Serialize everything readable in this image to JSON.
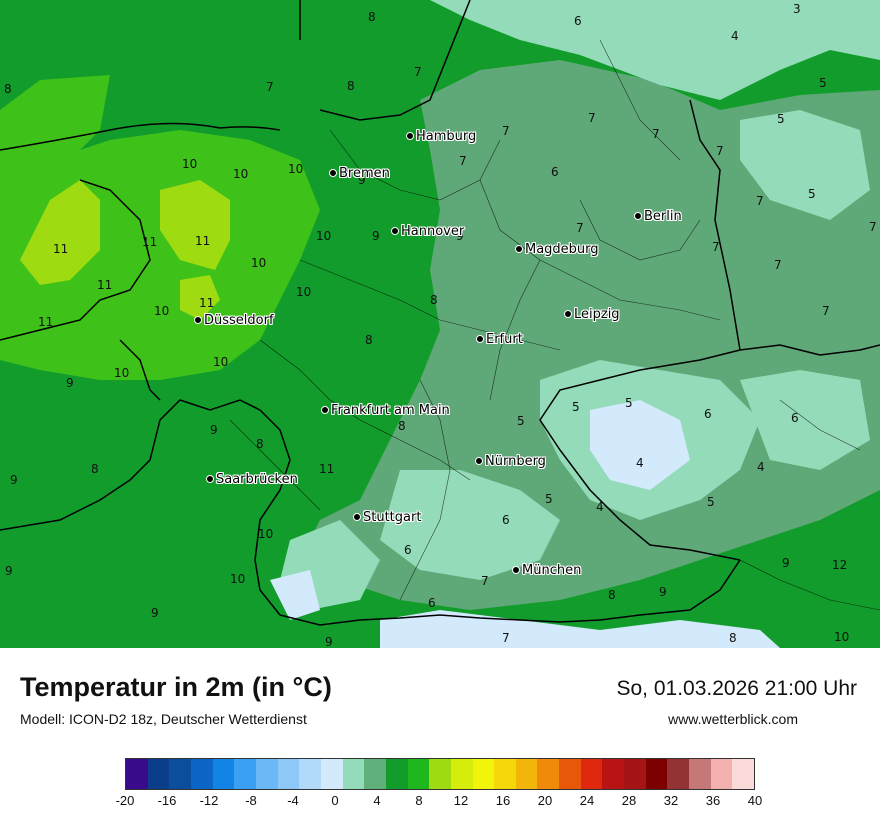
{
  "map": {
    "cities": [
      {
        "name": "Hamburg",
        "pos": [
          410,
          140
        ]
      },
      {
        "name": "Bremen",
        "pos": [
          333,
          177
        ]
      },
      {
        "name": "Berlin",
        "pos": [
          638,
          220
        ]
      },
      {
        "name": "Hannover",
        "pos": [
          395,
          235
        ]
      },
      {
        "name": "Magdeburg",
        "pos": [
          519,
          253
        ]
      },
      {
        "name": "Leipzig",
        "pos": [
          568,
          318
        ]
      },
      {
        "name": "Düsseldorf",
        "pos": [
          198,
          324
        ]
      },
      {
        "name": "Erfurt",
        "pos": [
          480,
          343
        ]
      },
      {
        "name": "Frankfurt am Main",
        "pos": [
          325,
          414
        ]
      },
      {
        "name": "Nürnberg",
        "pos": [
          479,
          465
        ]
      },
      {
        "name": "Saarbrücken",
        "pos": [
          210,
          483
        ]
      },
      {
        "name": "Stuttgart",
        "pos": [
          357,
          521
        ]
      },
      {
        "name": "München",
        "pos": [
          516,
          574
        ]
      }
    ],
    "values": [
      {
        "v": "8",
        "pos": [
          372,
          18
        ]
      },
      {
        "v": "6",
        "pos": [
          578,
          22
        ]
      },
      {
        "v": "3",
        "pos": [
          797,
          10
        ]
      },
      {
        "v": "4",
        "pos": [
          735,
          37
        ]
      },
      {
        "v": "8",
        "pos": [
          8,
          90
        ]
      },
      {
        "v": "7",
        "pos": [
          270,
          88
        ]
      },
      {
        "v": "8",
        "pos": [
          351,
          87
        ]
      },
      {
        "v": "7",
        "pos": [
          418,
          73
        ]
      },
      {
        "v": "5",
        "pos": [
          823,
          84
        ]
      },
      {
        "v": "7",
        "pos": [
          506,
          132
        ]
      },
      {
        "v": "7",
        "pos": [
          592,
          119
        ]
      },
      {
        "v": "7",
        "pos": [
          656,
          135
        ]
      },
      {
        "v": "5",
        "pos": [
          781,
          120
        ]
      },
      {
        "v": "10",
        "pos": [
          186,
          165
        ]
      },
      {
        "v": "10",
        "pos": [
          237,
          175
        ]
      },
      {
        "v": "10",
        "pos": [
          292,
          170
        ]
      },
      {
        "v": "9",
        "pos": [
          362,
          181
        ]
      },
      {
        "v": "7",
        "pos": [
          463,
          162
        ]
      },
      {
        "v": "6",
        "pos": [
          555,
          173
        ]
      },
      {
        "v": "7",
        "pos": [
          720,
          152
        ]
      },
      {
        "v": "7",
        "pos": [
          760,
          202
        ]
      },
      {
        "v": "5",
        "pos": [
          812,
          195
        ]
      },
      {
        "v": "7",
        "pos": [
          873,
          228
        ]
      },
      {
        "v": "11",
        "pos": [
          57,
          250
        ]
      },
      {
        "v": "11",
        "pos": [
          146,
          243
        ]
      },
      {
        "v": "11",
        "pos": [
          199,
          242
        ]
      },
      {
        "v": "10",
        "pos": [
          255,
          264
        ]
      },
      {
        "v": "10",
        "pos": [
          320,
          237
        ]
      },
      {
        "v": "9",
        "pos": [
          376,
          237
        ]
      },
      {
        "v": "9",
        "pos": [
          460,
          237
        ]
      },
      {
        "v": "7",
        "pos": [
          580,
          229
        ]
      },
      {
        "v": "7",
        "pos": [
          716,
          248
        ]
      },
      {
        "v": "7",
        "pos": [
          778,
          266
        ]
      },
      {
        "v": "11",
        "pos": [
          101,
          286
        ]
      },
      {
        "v": "10",
        "pos": [
          300,
          293
        ]
      },
      {
        "v": "8",
        "pos": [
          434,
          301
        ]
      },
      {
        "v": "11",
        "pos": [
          203,
          304
        ]
      },
      {
        "v": "10",
        "pos": [
          158,
          312
        ]
      },
      {
        "v": "11",
        "pos": [
          42,
          323
        ]
      },
      {
        "v": "7",
        "pos": [
          826,
          312
        ]
      },
      {
        "v": "8",
        "pos": [
          369,
          341
        ]
      },
      {
        "v": "10",
        "pos": [
          217,
          363
        ]
      },
      {
        "v": "10",
        "pos": [
          118,
          374
        ]
      },
      {
        "v": "9",
        "pos": [
          70,
          384
        ]
      },
      {
        "v": "5",
        "pos": [
          576,
          408
        ]
      },
      {
        "v": "5",
        "pos": [
          629,
          404
        ]
      },
      {
        "v": "6",
        "pos": [
          708,
          415
        ]
      },
      {
        "v": "6",
        "pos": [
          795,
          419
        ]
      },
      {
        "v": "5",
        "pos": [
          521,
          422
        ]
      },
      {
        "v": "8",
        "pos": [
          402,
          427
        ]
      },
      {
        "v": "9",
        "pos": [
          214,
          431
        ]
      },
      {
        "v": "8",
        "pos": [
          260,
          445
        ]
      },
      {
        "v": "11",
        "pos": [
          323,
          470
        ]
      },
      {
        "v": "4",
        "pos": [
          640,
          464
        ]
      },
      {
        "v": "4",
        "pos": [
          761,
          468
        ]
      },
      {
        "v": "8",
        "pos": [
          95,
          470
        ]
      },
      {
        "v": "9",
        "pos": [
          14,
          481
        ]
      },
      {
        "v": "5",
        "pos": [
          549,
          500
        ]
      },
      {
        "v": "4",
        "pos": [
          600,
          508
        ]
      },
      {
        "v": "5",
        "pos": [
          711,
          503
        ]
      },
      {
        "v": "6",
        "pos": [
          506,
          521
        ]
      },
      {
        "v": "10",
        "pos": [
          262,
          535
        ]
      },
      {
        "v": "6",
        "pos": [
          408,
          551
        ]
      },
      {
        "v": "9",
        "pos": [
          786,
          564
        ]
      },
      {
        "v": "12",
        "pos": [
          836,
          566
        ]
      },
      {
        "v": "9",
        "pos": [
          9,
          572
        ]
      },
      {
        "v": "10",
        "pos": [
          234,
          580
        ]
      },
      {
        "v": "7",
        "pos": [
          485,
          582
        ]
      },
      {
        "v": "8",
        "pos": [
          612,
          596
        ]
      },
      {
        "v": "9",
        "pos": [
          663,
          593
        ]
      },
      {
        "v": "6",
        "pos": [
          432,
          604
        ]
      },
      {
        "v": "9",
        "pos": [
          155,
          614
        ]
      },
      {
        "v": "7",
        "pos": [
          506,
          639
        ]
      },
      {
        "v": "8",
        "pos": [
          733,
          639
        ]
      },
      {
        "v": "9",
        "pos": [
          329,
          643
        ]
      },
      {
        "v": "10",
        "pos": [
          838,
          638
        ]
      }
    ]
  },
  "footer": {
    "title": "Temperatur in 2m (in °C)",
    "subtitle": "Modell: ICON-D2 18z, Deutscher Wetterdienst",
    "datetime": "So, 01.03.2026 21:00 Uhr",
    "website": "www.wetterblick.com"
  },
  "legend": {
    "colors": [
      "#3a0a8c",
      "#0a3e8a",
      "#0b4f9c",
      "#0d66c6",
      "#1184e6",
      "#3aa0f3",
      "#6cb8f7",
      "#8ec8f8",
      "#b0d9fa",
      "#d3e9fc",
      "#93dbb9",
      "#5fb07a",
      "#129c2b",
      "#1eb81e",
      "#9edb10",
      "#d6ec0a",
      "#f1f50c",
      "#f4d80a",
      "#f2b509",
      "#f08a0a",
      "#e9570b",
      "#e0280f",
      "#b81414",
      "#a61515",
      "#7d0000",
      "#933333",
      "#c47878",
      "#f5b0b0",
      "#fbdada"
    ],
    "ticks": [
      "-20",
      "-16",
      "-12",
      "-8",
      "-4",
      "0",
      "4",
      "8",
      "12",
      "16",
      "20",
      "24",
      "28",
      "32",
      "36",
      "40"
    ]
  }
}
